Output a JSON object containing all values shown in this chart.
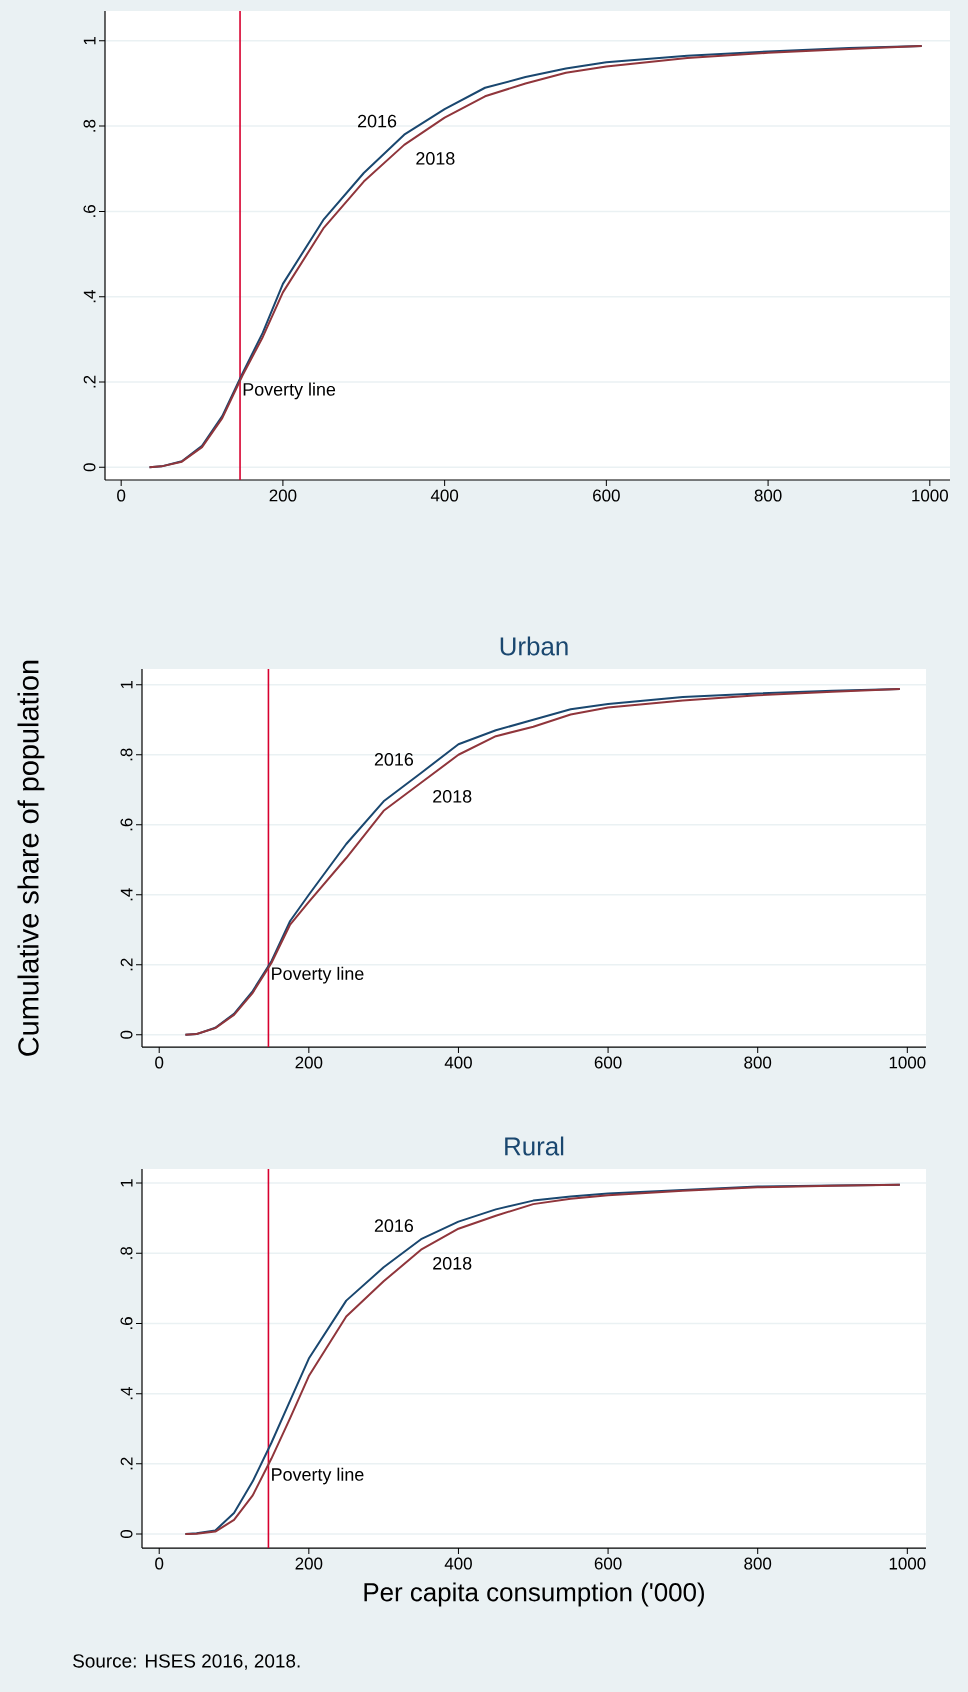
{
  "chart_data": [
    {
      "type": "line",
      "xlim": [
        -20,
        1025
      ],
      "ylim": [
        -0.03,
        1.07
      ],
      "xticks": [
        0,
        200,
        400,
        600,
        800,
        1000
      ],
      "yticks": [
        0,
        {
          "value": 0.2,
          "label": ".2"
        },
        {
          "value": 0.4,
          "label": ".4"
        },
        {
          "value": 0.6,
          "label": ".6"
        },
        {
          "value": 0.8,
          "label": ".8"
        },
        1
      ],
      "grid": "y",
      "x": [
        35,
        50,
        75,
        100,
        125,
        150,
        175,
        200,
        250,
        300,
        350,
        400,
        450,
        500,
        550,
        600,
        700,
        800,
        900,
        990
      ],
      "series": [
        {
          "name": "2016",
          "color": "#1a476f",
          "values": [
            0,
            0.002,
            0.014,
            0.05,
            0.12,
            0.22,
            0.315,
            0.43,
            0.58,
            0.69,
            0.78,
            0.84,
            0.89,
            0.915,
            0.935,
            0.95,
            0.965,
            0.975,
            0.983,
            0.988
          ]
        },
        {
          "name": "2018",
          "color": "#90353b",
          "values": [
            0,
            0.002,
            0.013,
            0.047,
            0.115,
            0.215,
            0.305,
            0.41,
            0.56,
            0.67,
            0.756,
            0.82,
            0.87,
            0.9,
            0.925,
            0.94,
            0.96,
            0.972,
            0.981,
            0.988
          ]
        }
      ],
      "ref_lines": [
        {
          "axis": "x",
          "value": 147,
          "label": "Poverty line",
          "color": "#d7002f"
        }
      ]
    },
    {
      "type": "line",
      "title": "Urban",
      "ylabel": "Cumulative share of population",
      "xlim": [
        -23,
        1025
      ],
      "ylim": [
        -0.035,
        1.045
      ],
      "xticks": [
        0,
        200,
        400,
        600,
        800,
        1000
      ],
      "yticks": [
        0,
        {
          "value": 0.2,
          "label": ".2"
        },
        {
          "value": 0.4,
          "label": ".4"
        },
        {
          "value": 0.6,
          "label": ".6"
        },
        {
          "value": 0.8,
          "label": ".8"
        },
        1
      ],
      "grid": "y",
      "x": [
        35,
        50,
        75,
        100,
        125,
        150,
        175,
        200,
        250,
        300,
        350,
        400,
        450,
        500,
        550,
        600,
        700,
        800,
        900,
        990
      ],
      "series": [
        {
          "name": "2016",
          "color": "#1a476f",
          "values": [
            0,
            0.002,
            0.02,
            0.06,
            0.125,
            0.21,
            0.325,
            0.4,
            0.545,
            0.667,
            0.748,
            0.83,
            0.87,
            0.9,
            0.93,
            0.945,
            0.965,
            0.975,
            0.983,
            0.988
          ]
        },
        {
          "name": "2018",
          "color": "#90353b",
          "values": [
            0,
            0.002,
            0.019,
            0.057,
            0.12,
            0.205,
            0.315,
            0.38,
            0.505,
            0.64,
            0.72,
            0.8,
            0.853,
            0.88,
            0.915,
            0.935,
            0.955,
            0.97,
            0.98,
            0.988
          ]
        }
      ],
      "ref_lines": [
        {
          "axis": "x",
          "value": 146,
          "label": "Poverty line",
          "color": "#d7002f"
        }
      ]
    },
    {
      "type": "line",
      "title": "Rural",
      "xlabel": "Per capita consumption ('000)",
      "xlim": [
        -23,
        1025
      ],
      "ylim": [
        -0.04,
        1.04
      ],
      "xticks": [
        0,
        200,
        400,
        600,
        800,
        1000
      ],
      "yticks": [
        0,
        {
          "value": 0.2,
          "label": ".2"
        },
        {
          "value": 0.4,
          "label": ".4"
        },
        {
          "value": 0.6,
          "label": ".6"
        },
        {
          "value": 0.8,
          "label": ".8"
        },
        1
      ],
      "grid": "y",
      "x": [
        35,
        50,
        75,
        100,
        125,
        150,
        175,
        200,
        250,
        300,
        350,
        400,
        450,
        500,
        550,
        600,
        700,
        800,
        900,
        990
      ],
      "series": [
        {
          "name": "2016",
          "color": "#1a476f",
          "values": [
            0,
            0.002,
            0.01,
            0.06,
            0.15,
            0.26,
            0.38,
            0.5,
            0.665,
            0.76,
            0.84,
            0.89,
            0.925,
            0.95,
            0.962,
            0.97,
            0.98,
            0.99,
            0.993,
            0.995
          ]
        },
        {
          "name": "2018",
          "color": "#90353b",
          "values": [
            0,
            0.001,
            0.007,
            0.04,
            0.11,
            0.215,
            0.33,
            0.45,
            0.62,
            0.72,
            0.81,
            0.87,
            0.907,
            0.94,
            0.955,
            0.965,
            0.978,
            0.988,
            0.992,
            0.995
          ]
        }
      ],
      "ref_lines": [
        {
          "axis": "x",
          "value": 146,
          "label": "Poverty line",
          "color": "#d7002f"
        }
      ],
      "annotations": [
        "Source: HSES 2016, 2018."
      ]
    }
  ]
}
